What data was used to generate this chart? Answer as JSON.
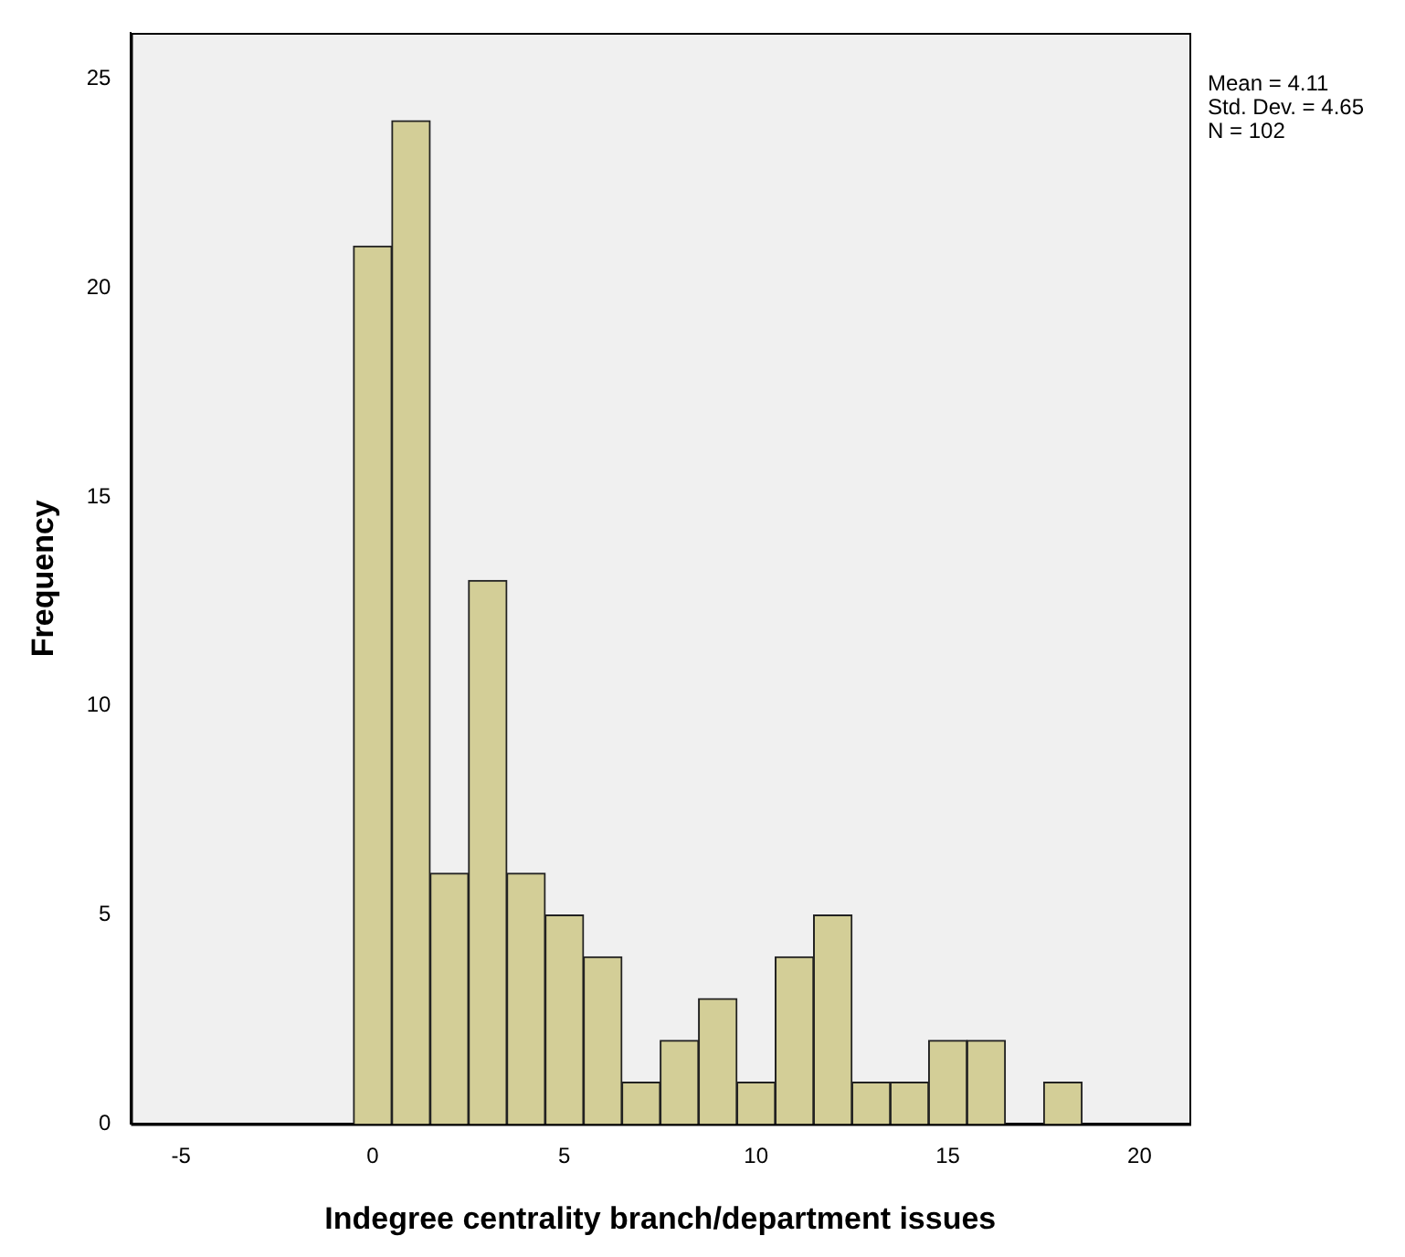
{
  "chart_data": {
    "type": "histogram",
    "xlabel": "Indegree centrality branch/department issues",
    "ylabel": "Frequency",
    "bins": [
      -0.5,
      0.5,
      1.5,
      2.5,
      3.5,
      4.5,
      5.5,
      6.5,
      7.5,
      8.5,
      9.5,
      10.5,
      11.5,
      12.5,
      13.5,
      14.5,
      15.5,
      16.5,
      17.5,
      18.5
    ],
    "values": [
      21,
      24,
      6,
      13,
      6,
      5,
      4,
      1,
      2,
      3,
      1,
      4,
      5,
      1,
      1,
      2,
      2,
      0,
      1
    ],
    "color": "#d3ce97",
    "xlim": [
      -6.3,
      21.3
    ],
    "xticks": [
      -5,
      0,
      5,
      10,
      15,
      20
    ],
    "ylim": [
      0,
      26.1
    ],
    "yticks": [
      0,
      5,
      10,
      15,
      20,
      25
    ],
    "grid": false,
    "legend": false,
    "annotations": [
      "Mean = 4.11",
      "Std. Dev. = 4.65",
      "N = 102"
    ]
  }
}
